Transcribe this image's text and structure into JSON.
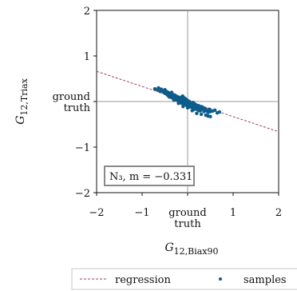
{
  "chart_data": {
    "type": "scatter",
    "xlabel": "G",
    "xlabel_sub": "12,Biax90",
    "ylabel": "G",
    "ylabel_sub": "12,Triax",
    "xlim": [
      -2,
      2
    ],
    "ylim": [
      -2,
      2
    ],
    "xticks": [
      -2,
      -1,
      0,
      1,
      2
    ],
    "yticks": [
      -2,
      -1,
      0,
      1,
      2
    ],
    "xtick_labels": [
      "−2",
      "−1",
      "",
      "1",
      "2"
    ],
    "ytick_labels": [
      "−2",
      "−1",
      "",
      "1",
      "2"
    ],
    "zero_tick_label": {
      "line1": "ground",
      "line2": "truth"
    },
    "annotation": "N₃, m = −0.331",
    "legend": {
      "placement": "bottom",
      "regression_label": "regression",
      "samples_label": "samples"
    },
    "colors": {
      "samples": "#0e5c8a",
      "regression": "#a23a6e",
      "crosshair": "#9a9a9a",
      "annotation_border": "#8a8a8a"
    },
    "regression": {
      "slope": -0.331,
      "intercept": 0.0
    },
    "samples": {
      "x": [
        -0.72,
        -0.66,
        -0.64,
        -0.6,
        -0.58,
        -0.55,
        -0.52,
        -0.5,
        -0.48,
        -0.46,
        -0.45,
        -0.43,
        -0.42,
        -0.4,
        -0.38,
        -0.37,
        -0.35,
        -0.34,
        -0.32,
        -0.31,
        -0.3,
        -0.28,
        -0.27,
        -0.26,
        -0.25,
        -0.24,
        -0.22,
        -0.21,
        -0.2,
        -0.19,
        -0.18,
        -0.17,
        -0.16,
        -0.15,
        -0.14,
        -0.13,
        -0.12,
        -0.11,
        -0.1,
        -0.09,
        -0.08,
        -0.07,
        -0.06,
        -0.05,
        -0.04,
        -0.03,
        -0.02,
        -0.01,
        0.0,
        0.01,
        0.02,
        0.03,
        0.04,
        0.05,
        0.06,
        0.07,
        0.08,
        0.09,
        0.1,
        0.11,
        0.12,
        0.13,
        0.14,
        0.15,
        0.16,
        0.17,
        0.18,
        0.2,
        0.22,
        0.24,
        0.26,
        0.28,
        0.3,
        0.32,
        0.34,
        0.36,
        0.38,
        0.4,
        0.42,
        0.45,
        0.48,
        0.5,
        0.55,
        0.6,
        0.65,
        0.7,
        -0.5,
        -0.4,
        -0.3,
        -0.2,
        -0.1,
        0.0,
        0.1,
        0.2,
        0.3,
        0.4,
        0.5,
        -0.35,
        -0.15,
        0.05,
        0.25,
        0.45,
        -0.25,
        0.15
      ],
      "y": [
        0.28,
        0.25,
        0.3,
        0.22,
        0.27,
        0.24,
        0.2,
        0.26,
        0.18,
        0.22,
        0.15,
        0.2,
        0.12,
        0.17,
        0.1,
        0.19,
        0.13,
        0.08,
        0.15,
        0.11,
        0.06,
        0.14,
        0.09,
        0.04,
        0.12,
        0.07,
        0.02,
        0.1,
        0.05,
        0.0,
        0.08,
        0.03,
        -0.02,
        0.06,
        0.01,
        -0.04,
        0.04,
        0.12,
        -0.01,
        0.09,
        -0.06,
        0.02,
        0.07,
        -0.03,
        0.05,
        -0.08,
        0.0,
        0.03,
        -0.05,
        -0.02,
        0.01,
        -0.1,
        -0.04,
        -0.01,
        -0.07,
        -0.12,
        -0.03,
        -0.09,
        -0.06,
        -0.14,
        -0.02,
        -0.11,
        -0.08,
        -0.05,
        -0.16,
        -0.1,
        -0.07,
        -0.12,
        -0.18,
        -0.09,
        -0.14,
        -0.2,
        -0.11,
        -0.16,
        -0.13,
        -0.22,
        -0.15,
        -0.18,
        -0.2,
        -0.24,
        -0.17,
        -0.22,
        -0.21,
        -0.19,
        -0.25,
        -0.23,
        0.18,
        0.1,
        0.03,
        -0.04,
        -0.11,
        -0.14,
        -0.2,
        -0.26,
        -0.28,
        -0.3,
        -0.33,
        0.2,
        0.09,
        -0.12,
        -0.2,
        -0.32,
        0.08,
        -0.17
      ]
    }
  }
}
